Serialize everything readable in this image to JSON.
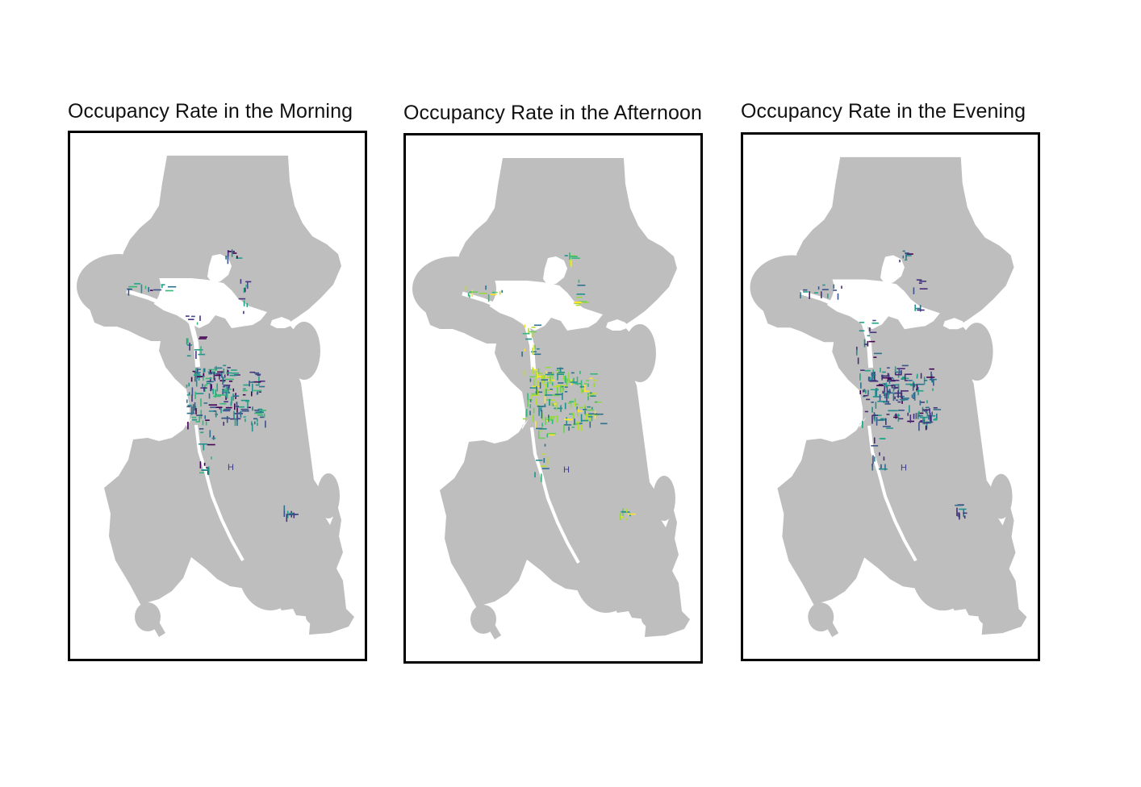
{
  "panels": [
    {
      "id": "morning",
      "title": "Occupancy Rate in the Morning",
      "palette": [
        "#2d708e",
        "#21918c",
        "#20a386",
        "#3b528b",
        "#46337e",
        "#440154",
        "#35b779"
      ]
    },
    {
      "id": "afternoon",
      "title": "Occupancy Rate in the Afternoon",
      "palette": [
        "#b8de29",
        "#fde725",
        "#35b779",
        "#6ece58",
        "#21918c",
        "#2d708e",
        "#95d840"
      ]
    },
    {
      "id": "evening",
      "title": "Occupancy Rate in the Evening",
      "palette": [
        "#3b528b",
        "#46337e",
        "#440154",
        "#2d708e",
        "#21918c",
        "#482878",
        "#20a386"
      ]
    }
  ],
  "map": {
    "land_color": "#bebebe",
    "water_color": "#ffffff",
    "marker_label": "H"
  }
}
